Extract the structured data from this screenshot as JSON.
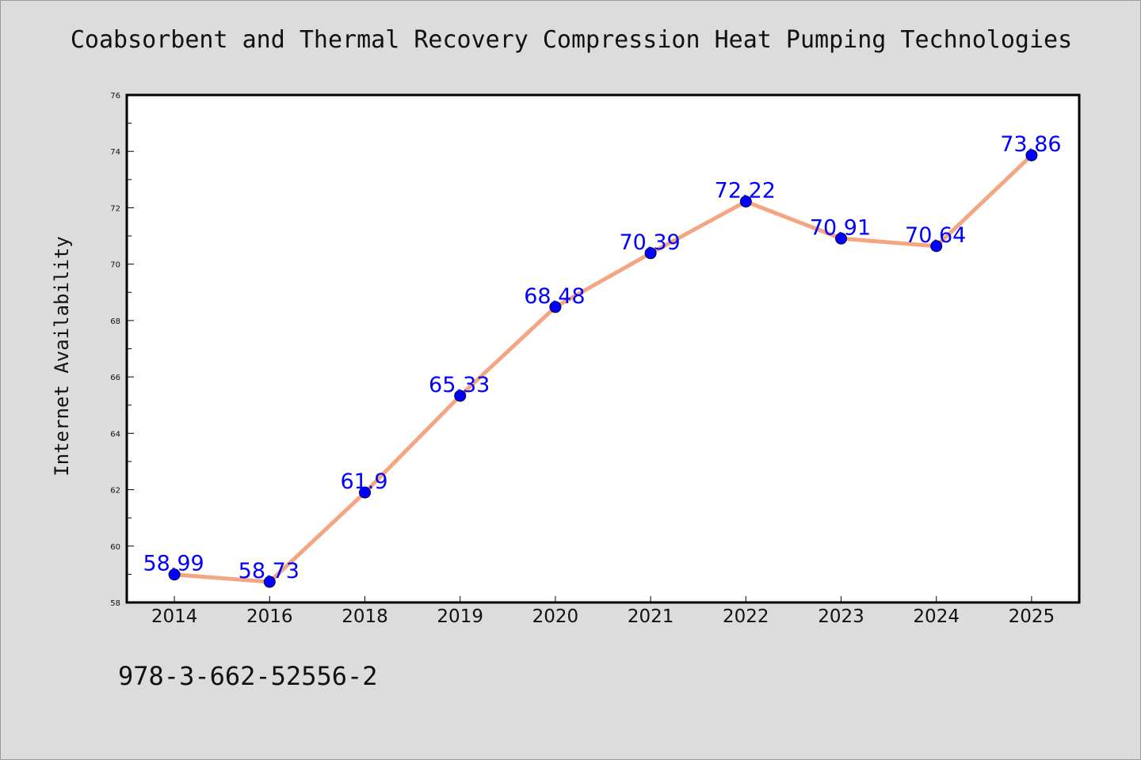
{
  "colors": {
    "background": "#dcdcdc",
    "plot_background": "#ffffff",
    "line": "#f4a582",
    "marker": "#0000ff",
    "data_label": "#0000ff"
  },
  "chart_data": {
    "type": "line",
    "title": "Coabsorbent and Thermal Recovery Compression Heat Pumping Technologies",
    "xlabel": "",
    "ylabel": "Internet Availability",
    "categories": [
      "2014",
      "2016",
      "2018",
      "2019",
      "2020",
      "2021",
      "2022",
      "2023",
      "2024",
      "2025"
    ],
    "series": [
      {
        "values": [
          58.99,
          58.73,
          61.9,
          65.33,
          68.48,
          70.39,
          72.22,
          70.91,
          70.64,
          73.86
        ],
        "labels": [
          "58.99",
          "58.73",
          "61.9",
          "65.33",
          "68.48",
          "70.39",
          "72.22",
          "70.91",
          "70.64",
          "73.86"
        ]
      }
    ],
    "ylim": [
      58,
      76
    ],
    "yticks": [
      58,
      60,
      62,
      64,
      66,
      68,
      70,
      72,
      74,
      76
    ],
    "yminor_step": 1,
    "grid": false,
    "legend": "none"
  },
  "footer": {
    "isbn": "978-3-662-52556-2"
  }
}
